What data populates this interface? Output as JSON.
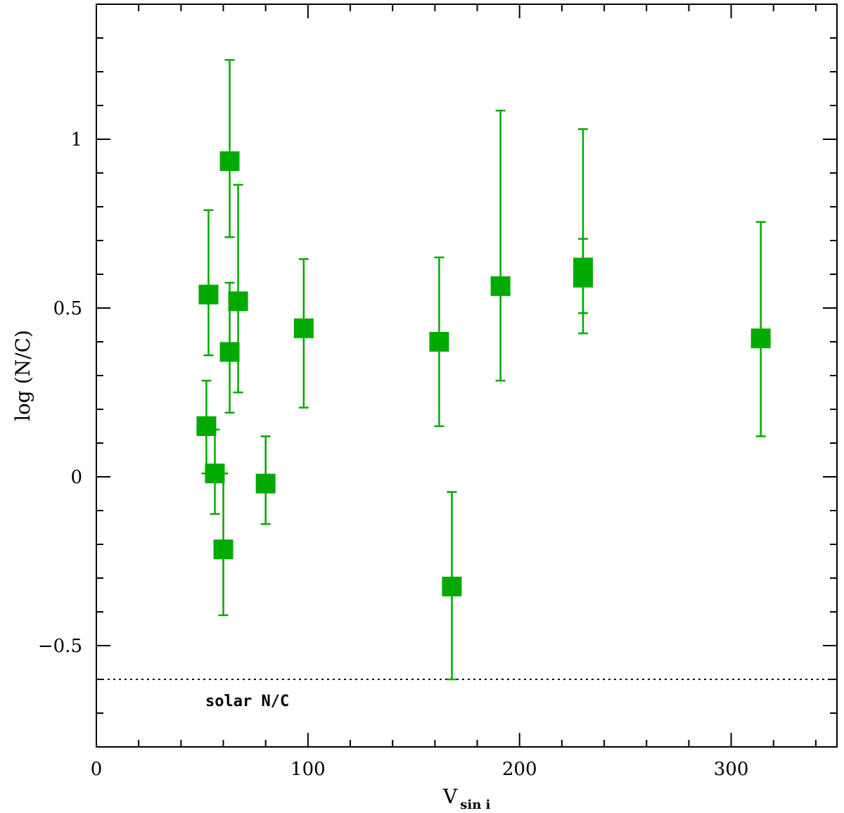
{
  "chart_data": {
    "type": "scatter",
    "xlabel": "V",
    "xlabel_sub": "sin i",
    "ylabel": "log (N/C)",
    "xlim": [
      0,
      350
    ],
    "ylim": [
      -0.8,
      1.4
    ],
    "x_ticks": [
      0,
      100,
      200,
      300
    ],
    "x_tick_labels": [
      "0",
      "100",
      "200",
      "300"
    ],
    "y_ticks": [
      -0.5,
      0,
      0.5,
      1
    ],
    "y_tick_labels": [
      "−0.5",
      "0",
      "0.5",
      "1"
    ],
    "x_minor_step": 20,
    "y_minor_step": 0.1,
    "grid": false,
    "marker": "square",
    "color": "#00aa00",
    "reference_line": {
      "y": -0.6,
      "style": "dotted",
      "label": "solar N/C"
    },
    "points": [
      {
        "x": 52,
        "y": 0.15,
        "ylo": 0.01,
        "yhi": 0.285
      },
      {
        "x": 53,
        "y": 0.54,
        "ylo": 0.36,
        "yhi": 0.79
      },
      {
        "x": 56,
        "y": 0.01,
        "ylo": -0.11,
        "yhi": 0.14
      },
      {
        "x": 60,
        "y": -0.215,
        "ylo": -0.41,
        "yhi": 0.01
      },
      {
        "x": 63,
        "y": 0.935,
        "ylo": 0.71,
        "yhi": 1.235
      },
      {
        "x": 63,
        "y": 0.37,
        "ylo": 0.19,
        "yhi": 0.575
      },
      {
        "x": 67,
        "y": 0.52,
        "ylo": 0.25,
        "yhi": 0.865
      },
      {
        "x": 80,
        "y": -0.02,
        "ylo": -0.14,
        "yhi": 0.12
      },
      {
        "x": 98,
        "y": 0.44,
        "ylo": 0.205,
        "yhi": 0.645
      },
      {
        "x": 162,
        "y": 0.4,
        "ylo": 0.15,
        "yhi": 0.65
      },
      {
        "x": 168,
        "y": -0.325,
        "ylo": -0.6,
        "yhi": -0.045
      },
      {
        "x": 191,
        "y": 0.565,
        "ylo": 0.285,
        "yhi": 1.085
      },
      {
        "x": 230,
        "y": 0.62,
        "ylo": 0.485,
        "yhi": 0.705
      },
      {
        "x": 230,
        "y": 0.59,
        "ylo": 0.425,
        "yhi": 1.03
      },
      {
        "x": 314,
        "y": 0.41,
        "ylo": 0.12,
        "yhi": 0.755
      }
    ]
  }
}
